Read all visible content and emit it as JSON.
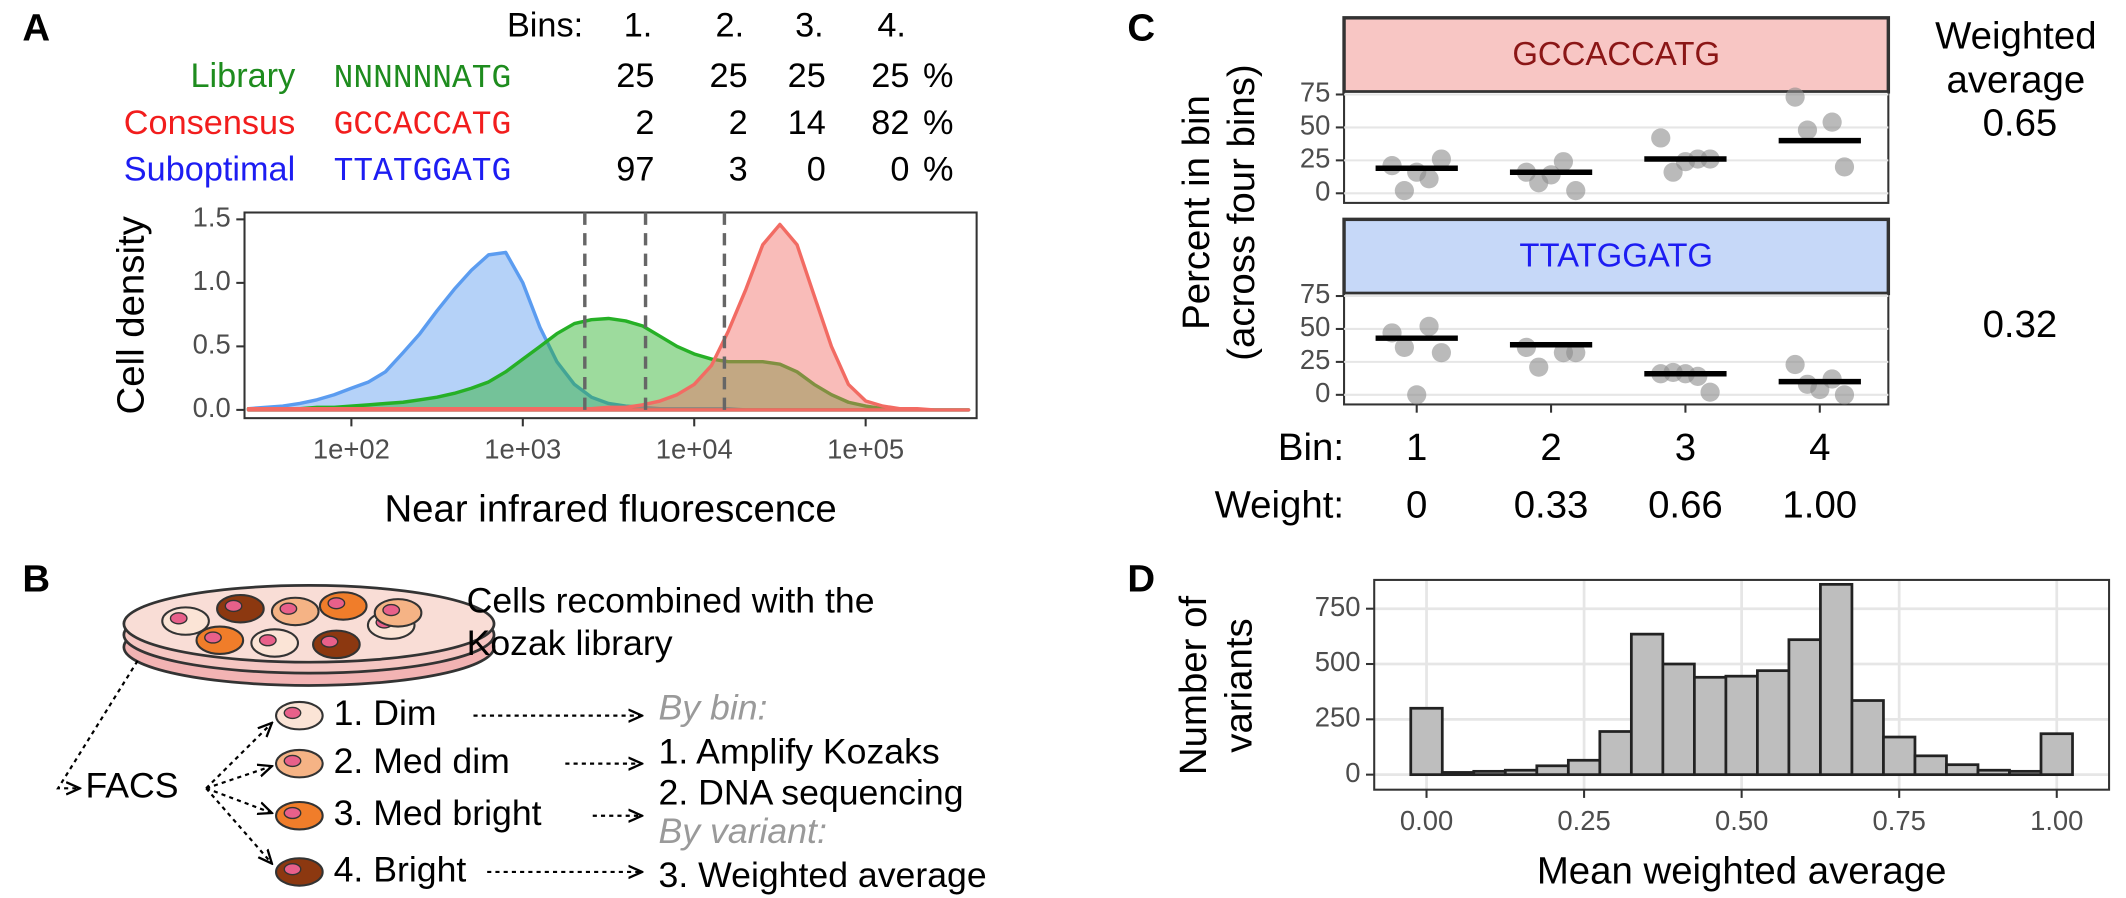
{
  "panel_labels": [
    "A",
    "B",
    "C",
    "D"
  ],
  "table_a": {
    "header_label": "Bins:",
    "bins": [
      "1.",
      "2.",
      "3.",
      "4."
    ],
    "rows": [
      {
        "name": "Library",
        "seq": "NNNNNNATG",
        "values": [
          25,
          25,
          25,
          25
        ],
        "unit": "%",
        "color": "#1e8c1e"
      },
      {
        "name": "Consensus",
        "seq": "GCCACCATG",
        "values": [
          2,
          2,
          14,
          82
        ],
        "unit": "%",
        "color": "#f21d1d"
      },
      {
        "name": "Suboptimal",
        "seq": "TTATGGATG",
        "values": [
          97,
          3,
          0,
          0
        ],
        "unit": "%",
        "color": "#1d1df2"
      }
    ]
  },
  "diagram_b": {
    "caption": [
      "Cells recombined with the",
      "Kozak library"
    ],
    "sort_node": "FACS",
    "bins": [
      "1. Dim",
      "2. Med dim",
      "3. Med bright",
      "4. Bright"
    ],
    "bin_colors": [
      "#fbe4d6",
      "#f5b385",
      "#f07d2a",
      "#8c3810"
    ],
    "steps": [
      "By bin:",
      "1. Amplify Kozaks",
      "2. DNA sequencing",
      "By variant:",
      "3. Weighted average"
    ]
  },
  "chart_data": [
    {
      "type": "area",
      "x_label": "Near infrared fluorescence",
      "y_label": "Cell density",
      "log_x": true,
      "x": [
        25.1,
        31.6,
        39.8,
        50.1,
        63.1,
        79.4,
        100,
        126,
        158,
        200,
        251,
        316,
        398,
        501,
        631,
        794,
        1000,
        1260,
        1580,
        2000,
        2510,
        3160,
        3980,
        5010,
        6310,
        7940,
        10000,
        12600,
        15800,
        20000,
        25100,
        31600,
        39800,
        50100,
        63100,
        79400,
        100000,
        126000,
        158000,
        200000,
        251000,
        316000,
        398000
      ],
      "xlim": [
        23.8,
        444000
      ],
      "xticks": [
        {
          "value": 100,
          "label": "1e+02"
        },
        {
          "value": 1000,
          "label": "1e+03"
        },
        {
          "value": 10000,
          "label": "1e+04"
        },
        {
          "value": 100000,
          "label": "1e+05"
        }
      ],
      "ylim": [
        -0.065,
        1.554
      ],
      "yticks": [
        {
          "value": 0,
          "label": "0.0"
        },
        {
          "value": 0.5,
          "label": "0.5"
        },
        {
          "value": 1,
          "label": "1.0"
        },
        {
          "value": 1.5,
          "label": "1.5"
        }
      ],
      "gates": [
        2300,
        5200,
        15000
      ],
      "series": [
        {
          "color": "#5b9cf0",
          "values": [
            0.01,
            0.02,
            0.03,
            0.05,
            0.08,
            0.12,
            0.17,
            0.22,
            0.3,
            0.45,
            0.6,
            0.78,
            0.95,
            1.1,
            1.22,
            1.24,
            1.0,
            0.65,
            0.38,
            0.2,
            0.1,
            0.05,
            0.03,
            0.02,
            0.01,
            0.01,
            0.01,
            0.01,
            0.01,
            0,
            0,
            0,
            0,
            0,
            0,
            0,
            0,
            0,
            0,
            0,
            0,
            0,
            0
          ]
        },
        {
          "color": "#26b026",
          "values": [
            0.01,
            0.01,
            0.01,
            0.01,
            0.02,
            0.02,
            0.03,
            0.04,
            0.05,
            0.06,
            0.08,
            0.1,
            0.13,
            0.17,
            0.22,
            0.3,
            0.4,
            0.5,
            0.6,
            0.68,
            0.71,
            0.72,
            0.7,
            0.66,
            0.58,
            0.5,
            0.44,
            0.4,
            0.38,
            0.38,
            0.38,
            0.36,
            0.3,
            0.2,
            0.12,
            0.06,
            0.03,
            0.01,
            0.01,
            0,
            0,
            0,
            0
          ]
        },
        {
          "color": "#f26b63",
          "values": [
            0.01,
            0.01,
            0.01,
            0.01,
            0.01,
            0.01,
            0.01,
            0.01,
            0.01,
            0.01,
            0.01,
            0.01,
            0.01,
            0.01,
            0.01,
            0.01,
            0.01,
            0.01,
            0.01,
            0.01,
            0.01,
            0.02,
            0.02,
            0.04,
            0.07,
            0.12,
            0.2,
            0.35,
            0.62,
            0.95,
            1.3,
            1.46,
            1.3,
            0.9,
            0.5,
            0.2,
            0.07,
            0.03,
            0.01,
            0.01,
            0,
            0,
            0
          ]
        }
      ]
    },
    {
      "type": "strip",
      "y_label": [
        "Percent in bin",
        "(across four bins)"
      ],
      "x_label": "Bin:",
      "categories": [
        "1",
        "2",
        "3",
        "4"
      ],
      "weight_label": "Weight:",
      "weights": [
        "0",
        "0.33",
        "0.66",
        "1.00"
      ],
      "side_title": [
        "Weighted",
        "average"
      ],
      "ylim": [
        -7.3,
        77
      ],
      "yticks": [
        0,
        25,
        50,
        75
      ],
      "point_color": "#8c8c8c",
      "facets": [
        {
          "label": "GCCACCATG",
          "strip_color": "#f8c6c4",
          "label_color": "#8b1616",
          "points": [
            [
              21,
              11,
              2,
              26,
              16
            ],
            [
              16,
              24,
              8,
              2,
              14
            ],
            [
              42,
              26,
              16,
              26,
              24
            ],
            [
              73,
              54,
              48,
              20
            ]
          ],
          "means": [
            19,
            16,
            26,
            40
          ],
          "weighted_average": 0.65
        },
        {
          "label": "TTATGGATG",
          "strip_color": "#c6d8f8",
          "label_color": "#1d1df2",
          "points": [
            [
              47,
              52,
              36,
              32,
              0
            ],
            [
              36,
              32,
              21,
              32
            ],
            [
              16,
              14,
              17,
              2,
              16
            ],
            [
              23,
              12,
              8,
              0,
              4
            ]
          ],
          "means": [
            43,
            38,
            16,
            10
          ],
          "weighted_average": 0.32
        }
      ]
    },
    {
      "type": "histogram",
      "x_label": "Mean weighted average",
      "y_label": [
        "Number of",
        "variants"
      ],
      "bins": [
        -0.025,
        0.025,
        0.075,
        0.125,
        0.175,
        0.225,
        0.275,
        0.325,
        0.375,
        0.425,
        0.475,
        0.525,
        0.575,
        0.625,
        0.675,
        0.725,
        0.775,
        0.825,
        0.875,
        0.925,
        0.975,
        1.025
      ],
      "counts": [
        300,
        10,
        15,
        20,
        40,
        65,
        195,
        635,
        500,
        440,
        445,
        470,
        610,
        860,
        335,
        170,
        85,
        45,
        20,
        15,
        185
      ],
      "color": "#bebebe",
      "xlim": [
        -0.083,
        1.083
      ],
      "xticks": [
        {
          "value": 0,
          "label": "0.00"
        },
        {
          "value": 0.25,
          "label": "0.25"
        },
        {
          "value": 0.5,
          "label": "0.50"
        },
        {
          "value": 0.75,
          "label": "0.75"
        },
        {
          "value": 1,
          "label": "1.00"
        }
      ],
      "ylim": [
        -68,
        880
      ],
      "yticks": [
        0,
        250,
        500,
        750
      ],
      "grid": true
    }
  ]
}
